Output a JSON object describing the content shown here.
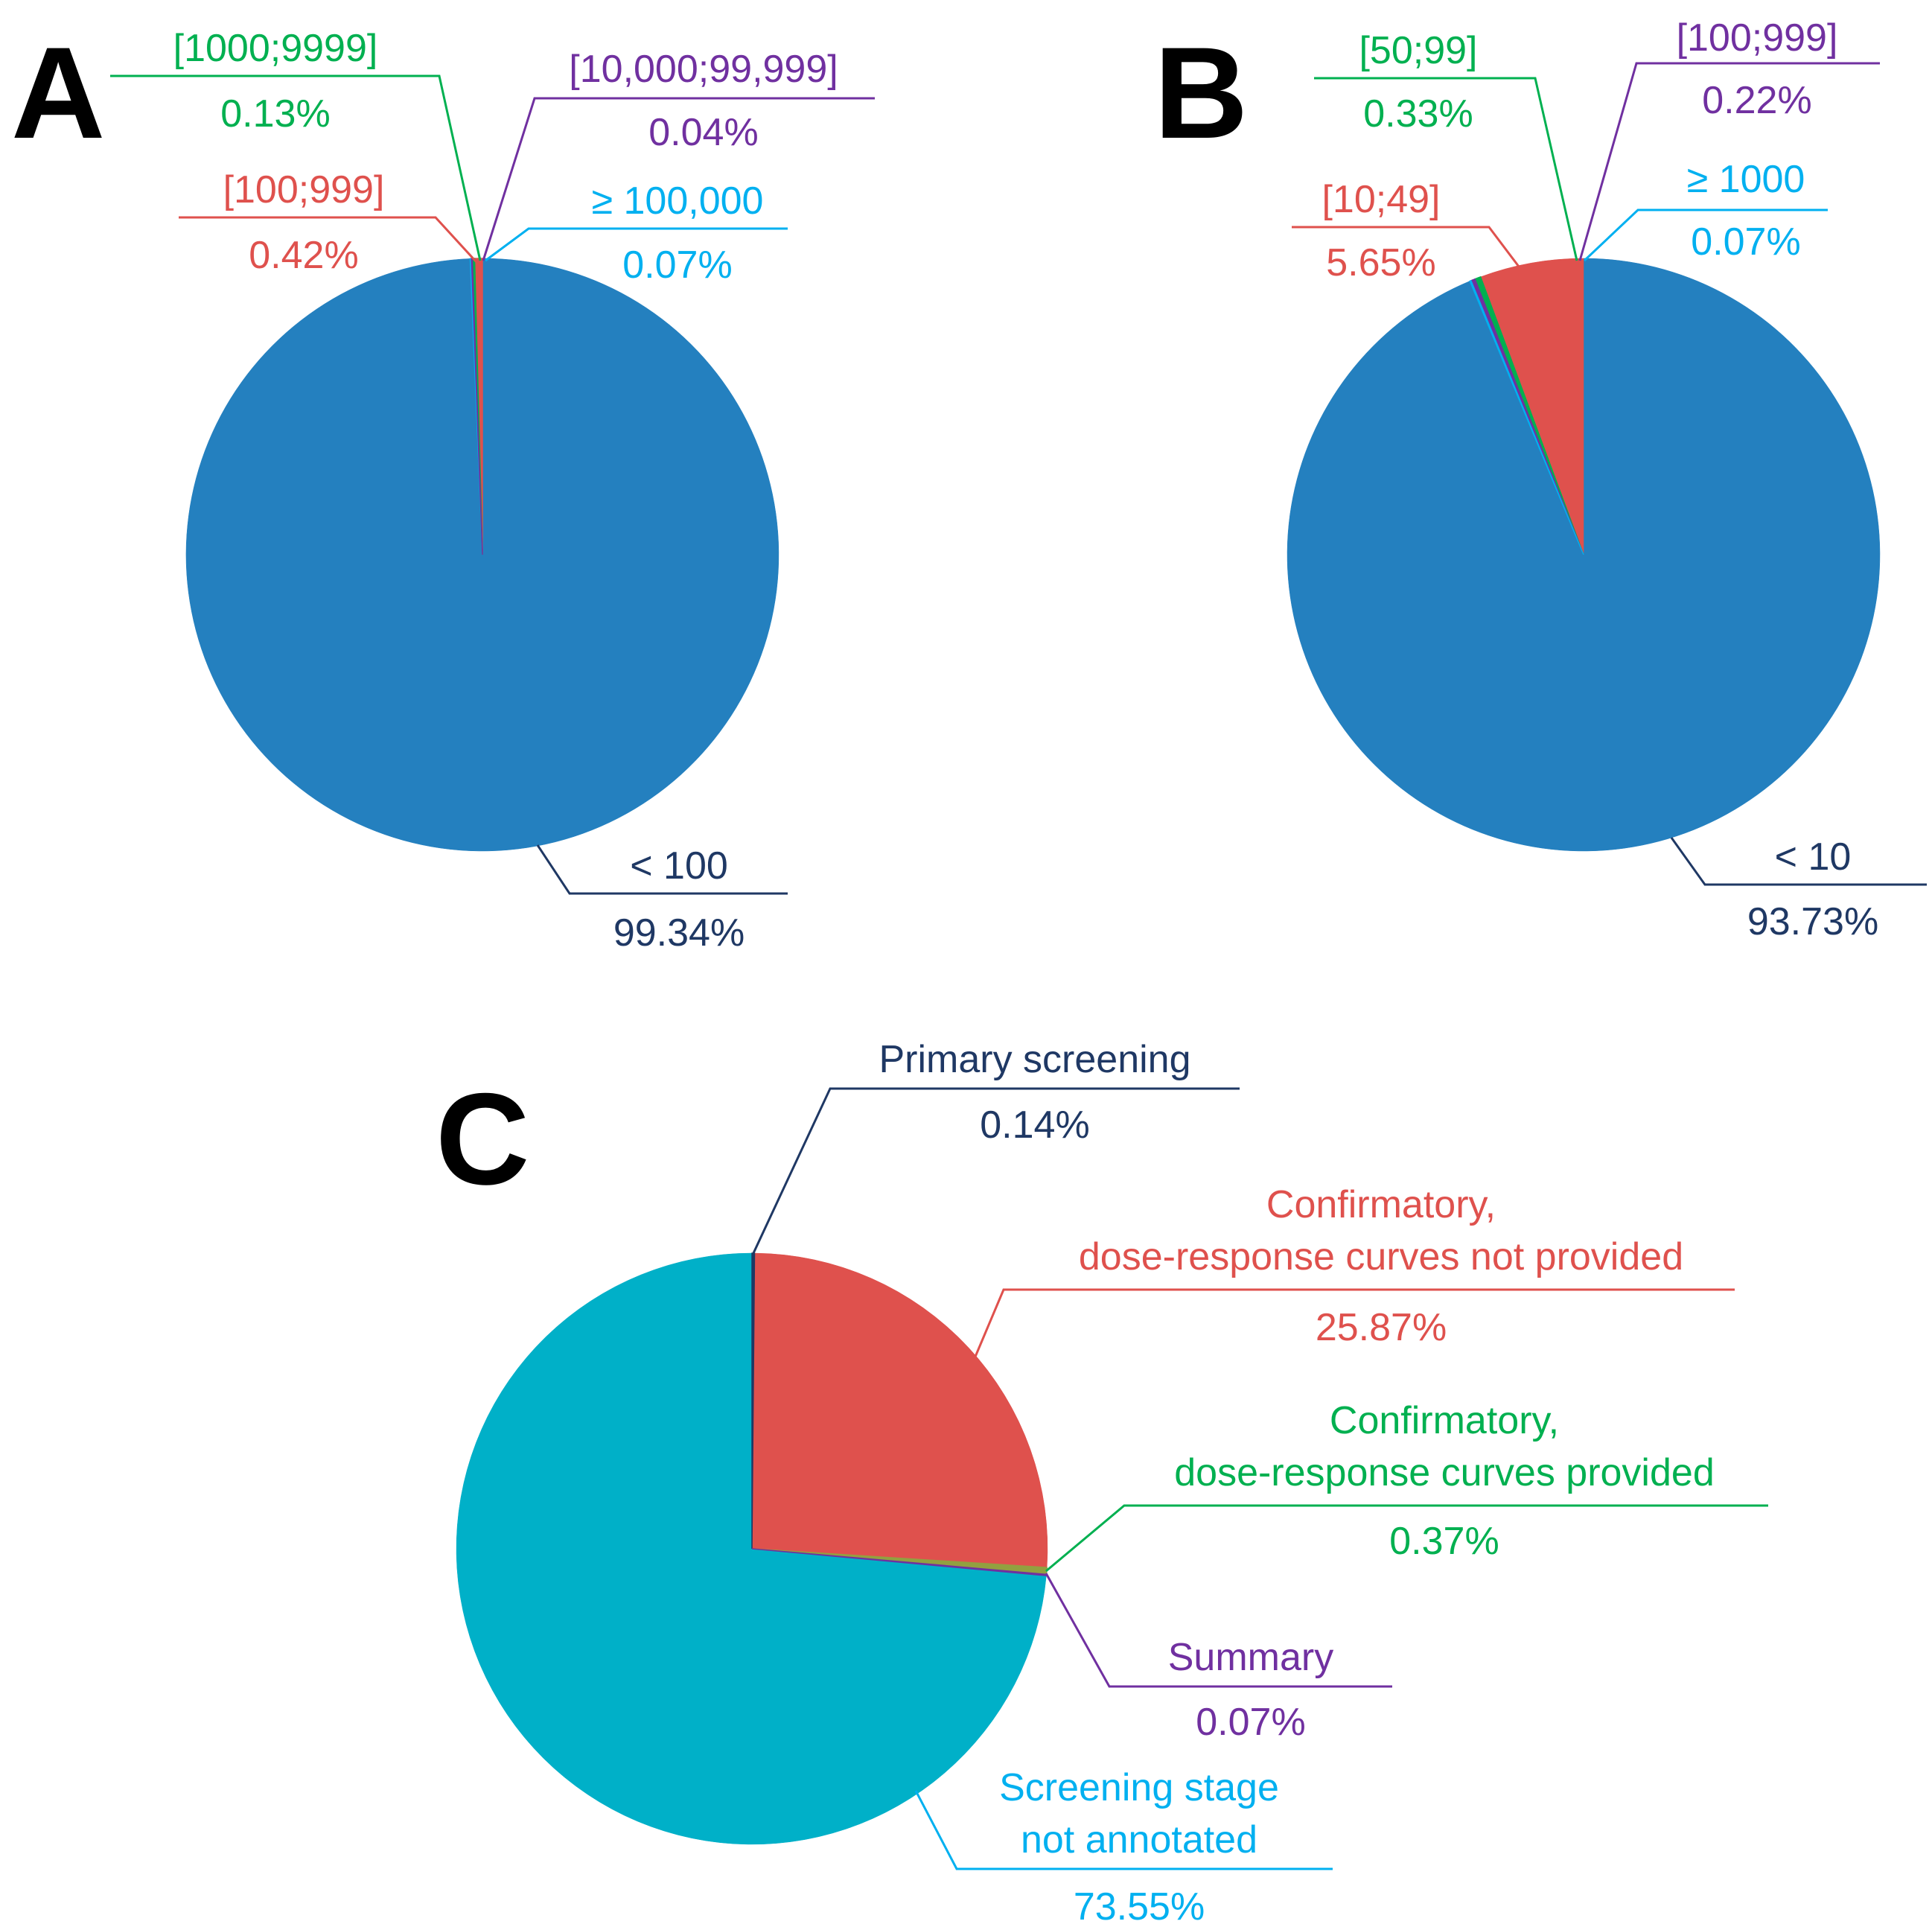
{
  "colors": {
    "blue": "#2480bf",
    "red": "#df514d",
    "green": "#00b050",
    "purple": "#7030a0",
    "cyan": "#00b0f0",
    "navy": "#1f3864",
    "teal": "#00b0c8",
    "olive": "#92a040"
  },
  "chart_data": [
    {
      "type": "pie",
      "panel": "A",
      "slices": [
        {
          "key": "lt100",
          "labels": [
            "< 100"
          ],
          "pct_label": "99.34%",
          "value": 99.34,
          "color": "blue",
          "text_color": "navy"
        },
        {
          "key": "100_999",
          "labels": [
            "[100;999]"
          ],
          "pct_label": "0.42%",
          "value": 0.42,
          "color": "red",
          "text_color": "red"
        },
        {
          "key": "1000_9999",
          "labels": [
            "[1000;9999]"
          ],
          "pct_label": "0.13%",
          "value": 0.13,
          "color": "green",
          "text_color": "green"
        },
        {
          "key": "10000_99999",
          "labels": [
            "[10,000;99,999]"
          ],
          "pct_label": "0.04%",
          "value": 0.04,
          "color": "purple",
          "text_color": "purple"
        },
        {
          "key": "ge100000",
          "labels": [
            "≥ 100,000"
          ],
          "pct_label": "0.07%",
          "value": 0.07,
          "color": "cyan",
          "text_color": "cyan"
        }
      ]
    },
    {
      "type": "pie",
      "panel": "B",
      "slices": [
        {
          "key": "lt10",
          "labels": [
            "< 10"
          ],
          "pct_label": "93.73%",
          "value": 93.73,
          "color": "blue",
          "text_color": "navy"
        },
        {
          "key": "10_49",
          "labels": [
            "[10;49]"
          ],
          "pct_label": "5.65%",
          "value": 5.65,
          "color": "red",
          "text_color": "red"
        },
        {
          "key": "50_99",
          "labels": [
            "[50;99]"
          ],
          "pct_label": "0.33%",
          "value": 0.33,
          "color": "green",
          "text_color": "green"
        },
        {
          "key": "100_999",
          "labels": [
            "[100;999]"
          ],
          "pct_label": "0.22%",
          "value": 0.22,
          "color": "purple",
          "text_color": "purple"
        },
        {
          "key": "ge1000",
          "labels": [
            "≥ 1000"
          ],
          "pct_label": "0.07%",
          "value": 0.07,
          "color": "cyan",
          "text_color": "cyan"
        }
      ]
    },
    {
      "type": "pie",
      "panel": "C",
      "slices": [
        {
          "key": "primary",
          "labels": [
            "Primary screening"
          ],
          "pct_label": "0.14%",
          "value": 0.14,
          "color": "navy",
          "text_color": "navy"
        },
        {
          "key": "confirm_no_curves",
          "labels": [
            "Confirmatory,",
            "dose-response curves not provided"
          ],
          "pct_label": "25.87%",
          "value": 25.87,
          "color": "red",
          "text_color": "red"
        },
        {
          "key": "confirm_curves",
          "labels": [
            "Confirmatory,",
            "dose-response curves provided"
          ],
          "pct_label": "0.37%",
          "value": 0.37,
          "color": "olive",
          "text_color": "green"
        },
        {
          "key": "summary",
          "labels": [
            "Summary"
          ],
          "pct_label": "0.07%",
          "value": 0.07,
          "color": "purple",
          "text_color": "purple"
        },
        {
          "key": "not_annotated",
          "labels": [
            "Screening stage",
            "not annotated"
          ],
          "pct_label": "73.55%",
          "value": 73.55,
          "color": "teal",
          "text_color": "cyan"
        }
      ]
    }
  ]
}
